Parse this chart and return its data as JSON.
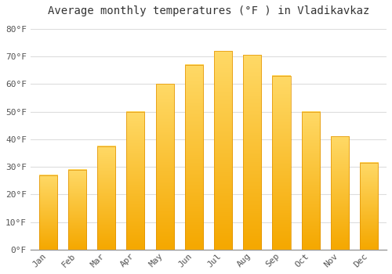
{
  "title": "Average monthly temperatures (°F ) in Vladikavkaz",
  "months": [
    "Jan",
    "Feb",
    "Mar",
    "Apr",
    "May",
    "Jun",
    "Jul",
    "Aug",
    "Sep",
    "Oct",
    "Nov",
    "Dec"
  ],
  "values": [
    27,
    29,
    37.5,
    50,
    60,
    67,
    72,
    70.5,
    63,
    50,
    41,
    31.5
  ],
  "bar_color_bottom": "#F5A800",
  "bar_color_top": "#FFD966",
  "background_color": "#FFFFFF",
  "plot_bg_color": "#FFFFFF",
  "ylim": [
    0,
    83
  ],
  "yticks": [
    0,
    10,
    20,
    30,
    40,
    50,
    60,
    70,
    80
  ],
  "ytick_labels": [
    "0°F",
    "10°F",
    "20°F",
    "30°F",
    "40°F",
    "50°F",
    "60°F",
    "70°F",
    "80°F"
  ],
  "grid_color": "#DDDDDD",
  "title_fontsize": 10,
  "tick_fontsize": 8,
  "font_family": "monospace"
}
